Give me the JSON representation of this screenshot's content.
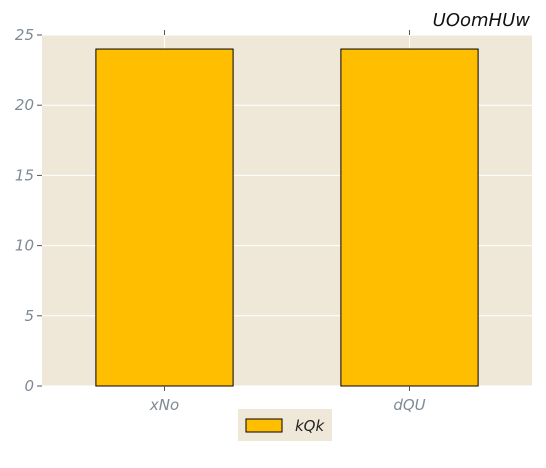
{
  "chart_data": {
    "type": "bar",
    "title": "UOomHUw",
    "categories": [
      "xNo",
      "dQU"
    ],
    "series": [
      {
        "name": "kQk",
        "values": [
          24,
          24
        ]
      }
    ],
    "ylim": [
      0,
      25
    ],
    "yticks": [
      0,
      5,
      10,
      15,
      20,
      25
    ],
    "xlabel": "",
    "ylabel": "",
    "grid": true,
    "legend": "bottom-center",
    "colors": {
      "bar_fill": "#ffbf00",
      "bar_edge": "#000000",
      "plot_background": "#efe8d8",
      "grid": "#ffffff",
      "tick_label": "#7f8a96"
    }
  }
}
